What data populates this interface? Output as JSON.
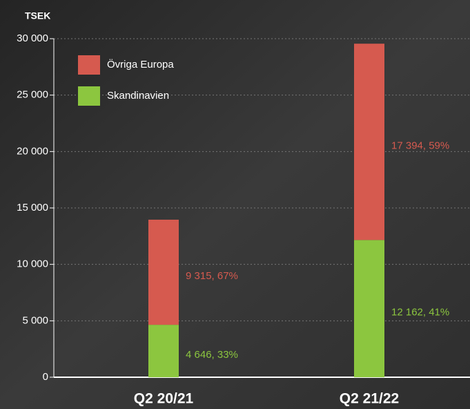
{
  "chart_data": {
    "type": "stacked_bar",
    "y_label": "TSEK",
    "categories": [
      "Q2 20/21",
      "Q2 21/22"
    ],
    "series": [
      {
        "name": "Skandinavien",
        "color": "#8cc63f",
        "values": [
          4646,
          12162
        ],
        "value_labels": [
          "4 646, 33%",
          "12 162, 41%"
        ]
      },
      {
        "name": "Övriga Europa",
        "color": "#d65a4f",
        "values": [
          9315,
          17394
        ],
        "value_labels": [
          "9 315, 67%",
          "17 394, 59%"
        ]
      }
    ],
    "ylim": [
      0,
      30000
    ],
    "yticks": [
      0,
      {
        "value": 5000,
        "label": "5 000"
      },
      {
        "value": 10000,
        "label": "10 000"
      },
      {
        "value": 15000,
        "label": "15 000"
      },
      {
        "value": 20000,
        "label": "20 000"
      },
      {
        "value": 25000,
        "label": "25 000"
      },
      {
        "value": 30000,
        "label": "30 000"
      }
    ],
    "grid": true,
    "legend": "upper left"
  }
}
